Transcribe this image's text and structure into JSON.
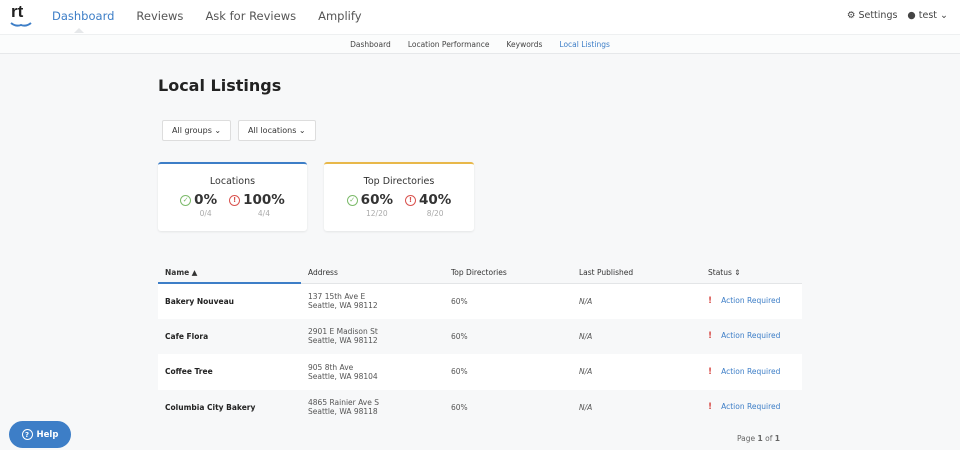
{
  "header": {
    "logo": "rt",
    "nav": [
      "Dashboard",
      "Reviews",
      "Ask for Reviews",
      "Amplify"
    ],
    "settings": "Settings",
    "user": "test"
  },
  "subnav": [
    "Dashboard",
    "Location Performance",
    "Keywords",
    "Local Listings"
  ],
  "page_title": "Local Listings",
  "filters": {
    "groups": "All groups",
    "locations": "All locations"
  },
  "cards": [
    {
      "title": "Locations",
      "accent": "#3d7ec7",
      "ok": {
        "pct": "0%",
        "frac": "0/4"
      },
      "bad": {
        "pct": "100%",
        "frac": "4/4"
      }
    },
    {
      "title": "Top Directories",
      "accent": "#e8b84a",
      "ok": {
        "pct": "60%",
        "frac": "12/20"
      },
      "bad": {
        "pct": "40%",
        "frac": "8/20"
      }
    }
  ],
  "table": {
    "headers": [
      "Name",
      "Address",
      "Top Directories",
      "Last Published",
      "Status"
    ],
    "rows": [
      {
        "name": "Bakery Nouveau",
        "addr1": "137 15th Ave E",
        "addr2": "Seattle, WA 98112",
        "top": "60%",
        "published": "N/A",
        "status": "Action Required"
      },
      {
        "name": "Cafe Flora",
        "addr1": "2901 E Madison St",
        "addr2": "Seattle, WA 98112",
        "top": "60%",
        "published": "N/A",
        "status": "Action Required"
      },
      {
        "name": "Coffee Tree",
        "addr1": "905 8th Ave",
        "addr2": "Seattle, WA 98104",
        "top": "60%",
        "published": "N/A",
        "status": "Action Required"
      },
      {
        "name": "Columbia City Bakery",
        "addr1": "4865 Rainier Ave S",
        "addr2": "Seattle, WA 98118",
        "top": "60%",
        "published": "N/A",
        "status": "Action Required"
      }
    ]
  },
  "pagination": {
    "label": "Page",
    "current": "1",
    "of": "of",
    "total": "1"
  },
  "help": "Help"
}
